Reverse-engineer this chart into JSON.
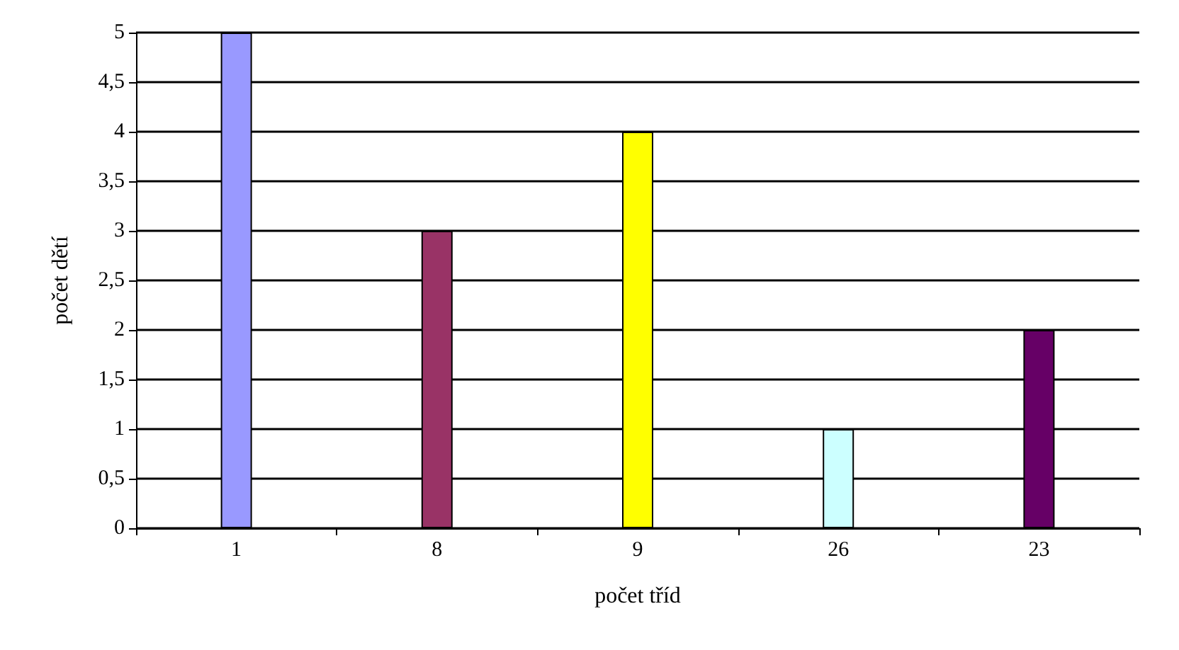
{
  "chart_data": {
    "type": "bar",
    "xlabel": "počet tříd",
    "ylabel": "počet dětí",
    "categories": [
      "1",
      "8",
      "9",
      "26",
      "23"
    ],
    "values": [
      5,
      3,
      4,
      1,
      2
    ],
    "colors": [
      "#9999ff",
      "#993366",
      "#ffff00",
      "#ccffff",
      "#660066"
    ],
    "ylim": [
      0,
      5
    ],
    "yticks": [
      0,
      {
        "value": 0.5,
        "label": "0,5"
      },
      1,
      {
        "value": 1.5,
        "label": "1,5"
      },
      2,
      {
        "value": 2.5,
        "label": "2,5"
      },
      3,
      {
        "value": 3.5,
        "label": "3,5"
      },
      4,
      {
        "value": 4.5,
        "label": "4,5"
      },
      5
    ],
    "grid": "y"
  }
}
